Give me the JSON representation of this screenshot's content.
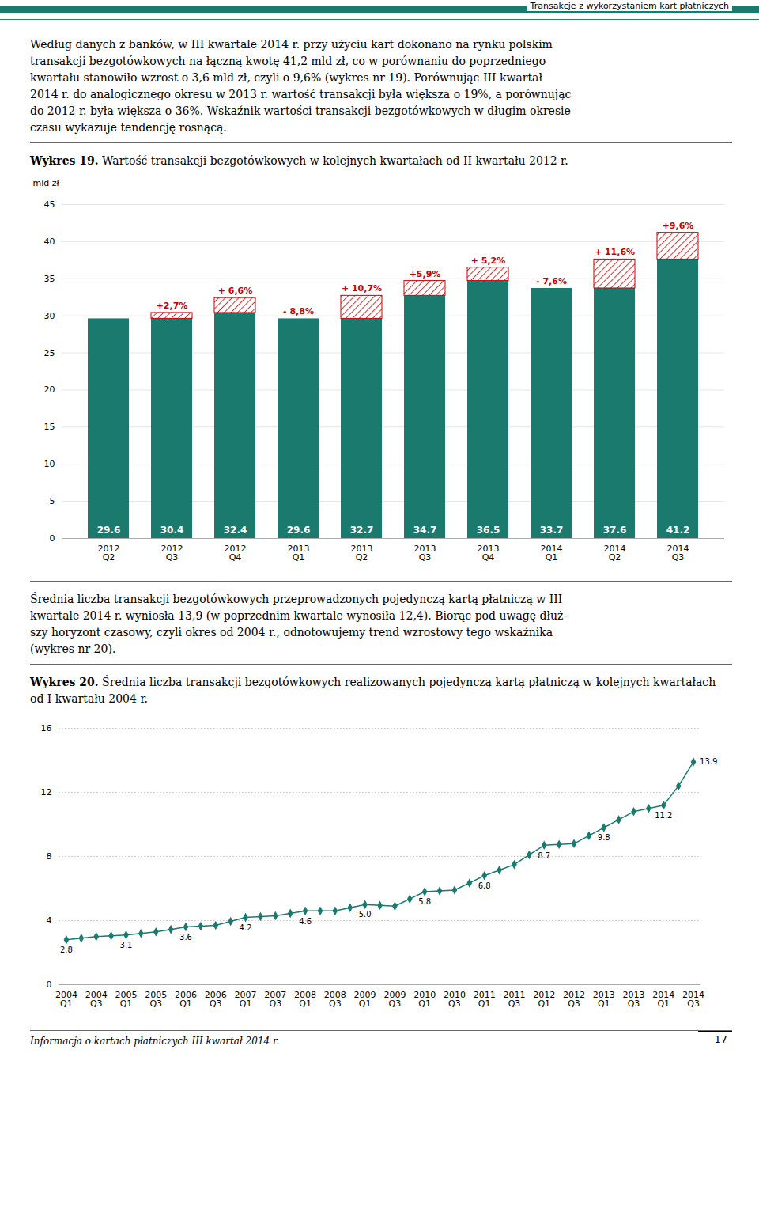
{
  "page_title": "Transakcje z wykorzystaniem kart płatniczych",
  "paragraphs": [
    [
      "Według danych z banków, w III kwartale 2014 r. przy użyciu kart dokonano na rynku polskim",
      "transakcji bezgotówkowych na łączną kwotę 41,2 mld zł, co w porównaniu do poprzedniego",
      "kwartału stanowiło wzrost o 3,6 mld zł, czyli o 9,6% (wykres nr 19). Porównując III kwartał",
      "2014 r. do analogicznego okresu w 2013 r. wartość transakcji była większa o 19%, a porównując",
      "do 2012 r. była większa o 36%. Wskaźnik wartości transakcji bezgotówkowych w długim okresie",
      "czasu wykazuje tendencję rosnącą."
    ],
    [
      "Średnia liczba transakcji bezgotówkowych przeprowadzonych pojedynczą kartą płatniczą w III",
      "kwartale 2014 r. wyniosła 13,9 (w poprzednim kwartale wynosiła 12,4). Biorąc pod uwagę dłuż-",
      "szy horyzont czasowy, czyli okres od 2004 r., odnotowujemy trend wzrostowy tego wskaźnika",
      "(wykres nr 20)."
    ]
  ],
  "chart_data": [
    {
      "type": "bar",
      "caption_label": "Wykres 19.",
      "title": "Wartość transakcji bezgotówkowych w kolejnych kwartałach od II kwartału 2012 r.",
      "ylabel": "mld zł",
      "categories": [
        "2012\nQ2",
        "2012\nQ3",
        "2012\nQ4",
        "2013\nQ1",
        "2013\nQ2",
        "2013\nQ3",
        "2013\nQ4",
        "2014\nQ1",
        "2014\nQ2",
        "2014\nQ3"
      ],
      "stacked": true,
      "series": [
        {
          "color": "#1a7a6e",
          "values": [
            29.6,
            29.6,
            30.4,
            29.6,
            29.6,
            32.7,
            34.7,
            33.7,
            33.7,
            37.6
          ]
        },
        {
          "color": "#cc0000",
          "values": [
            null,
            0.8,
            2.0,
            null,
            3.1,
            2.0,
            1.8,
            null,
            3.9,
            3.6
          ]
        }
      ],
      "totals": [
        29.6,
        30.4,
        32.4,
        29.6,
        32.7,
        34.7,
        36.5,
        33.7,
        37.6,
        41.2
      ],
      "data_labels": true,
      "annotations": [
        null,
        "+2,7%",
        "+ 6,6%",
        "- 8,8%",
        "+ 10,7%",
        "+5,9%",
        "+ 5,2%",
        "- 7,6%",
        "+ 11,6%",
        "+9,6%"
      ],
      "ylim": [
        0,
        45
      ],
      "yticks": [
        0,
        5,
        10,
        15,
        20,
        25,
        30,
        35,
        40,
        45
      ],
      "grid": true
    },
    {
      "type": "line",
      "caption_label": "Wykres 20.",
      "title": "Średnia liczba transakcji bezgotówkowych realizowanych pojedynczą kartą płatniczą w kolejnych kwartałach od I kwartału 2004 r.",
      "categories": [
        "2004\nQ1",
        null,
        "2004\nQ3",
        null,
        "2005\nQ1",
        null,
        "2005\nQ3",
        null,
        "2006\nQ1",
        null,
        "2006\nQ3",
        null,
        "2007\nQ1",
        null,
        "2007\nQ3",
        null,
        "2008\nQ1",
        null,
        "2008\nQ3",
        null,
        "2009\nQ1",
        null,
        "2009\nQ3",
        null,
        "2010\nQ1",
        null,
        "2010\nQ3",
        null,
        "2011\nQ1",
        null,
        "2011\nQ3",
        null,
        "2012\nQ1",
        null,
        "2012\nQ3",
        null,
        "2013\nQ1",
        null,
        "2013\nQ3",
        null,
        "2014\nQ1",
        null,
        "2014\nQ3"
      ],
      "values": [
        2.8,
        2.9,
        3.0,
        3.05,
        3.1,
        3.2,
        3.3,
        3.45,
        3.6,
        3.65,
        3.7,
        3.95,
        4.2,
        4.25,
        4.3,
        4.45,
        4.6,
        4.6,
        4.6,
        4.8,
        5.0,
        4.95,
        4.9,
        5.35,
        5.8,
        5.85,
        5.9,
        6.35,
        6.8,
        7.15,
        7.5,
        8.1,
        8.7,
        8.75,
        8.8,
        9.3,
        9.8,
        10.3,
        10.8,
        11.0,
        11.2,
        12.4,
        13.9
      ],
      "value_labels": [
        "2.8",
        null,
        null,
        null,
        "3.1",
        null,
        null,
        null,
        "3.6",
        null,
        null,
        null,
        "4.2",
        null,
        null,
        null,
        "4.6",
        null,
        null,
        null,
        "5.0",
        null,
        null,
        null,
        "5.8",
        null,
        null,
        null,
        "6.8",
        null,
        null,
        null,
        "8.7",
        null,
        null,
        null,
        "9.8",
        null,
        null,
        null,
        "11.2",
        null,
        "13.9"
      ],
      "color": "#1a7a6e",
      "marker": "diamond",
      "ylim": [
        0,
        16
      ],
      "yticks": [
        0,
        4,
        8,
        12,
        16
      ],
      "grid": true
    }
  ],
  "footer": "Informacja o kartach płatniczych  III  kwartał  2014 r.",
  "page_number": "17"
}
